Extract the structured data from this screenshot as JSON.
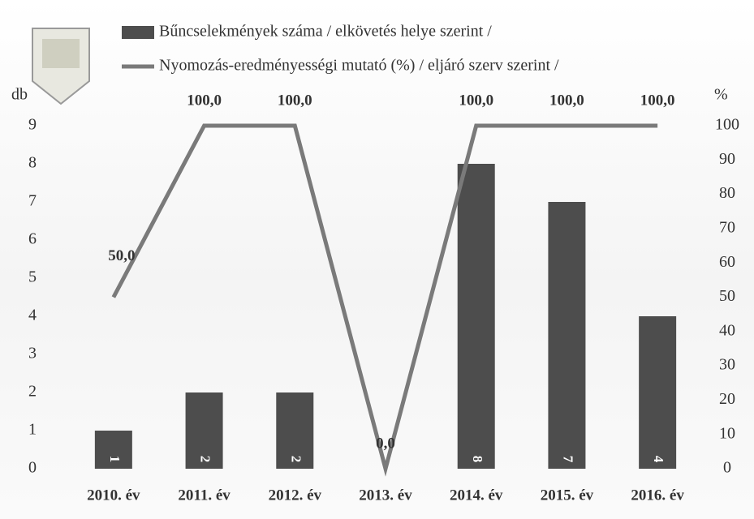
{
  "chart_data": {
    "type": "bar",
    "categories": [
      "2010. év",
      "2011. év",
      "2012. év",
      "2013. év",
      "2014. év",
      "2015. év",
      "2016. év"
    ],
    "ylabel": "db",
    "y2label": "%",
    "ylim": [
      0,
      9
    ],
    "yticks": [
      0,
      1,
      2,
      3,
      4,
      5,
      6,
      7,
      8,
      9
    ],
    "y2lim": [
      0,
      100
    ],
    "y2ticks": [
      0,
      10,
      20,
      30,
      40,
      50,
      60,
      70,
      80,
      90,
      100
    ],
    "series": [
      {
        "name": "Bűncselekmények száma / elkövetés helye szerint /",
        "type": "bar",
        "color": "#4d4d4d",
        "values": [
          1,
          2,
          2,
          0,
          8,
          7,
          4
        ]
      },
      {
        "name": "Nyomozás-eredményességi mutató (%) / eljáró szerv szerint /",
        "type": "line",
        "axis": "y2",
        "color": "#7a7a7a",
        "values": [
          50,
          100,
          100,
          0,
          100,
          100,
          100
        ],
        "value_labels": [
          "50,0",
          "100,0",
          "100,0",
          "0,0",
          "100,0",
          "100,0",
          "100,0"
        ]
      }
    ]
  }
}
